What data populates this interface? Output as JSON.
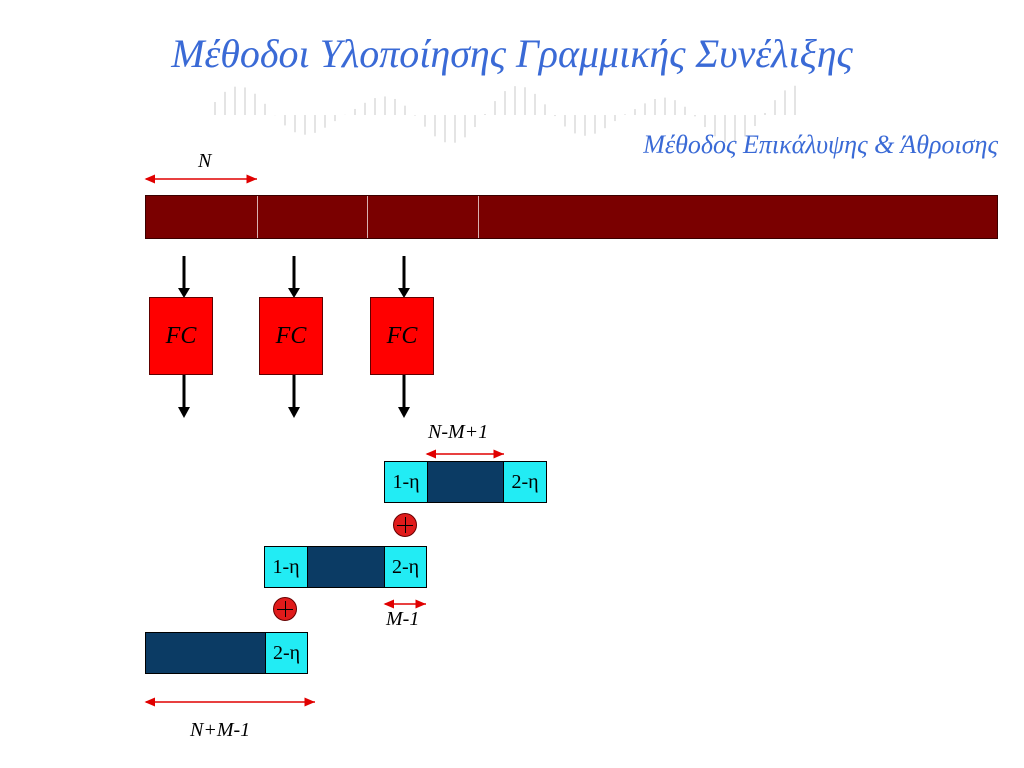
{
  "title": "Μέθοδοι Υλοποίησης Γραμμικής Συνέλιξης",
  "subtitle": "Μέθοδος Επικάλυψης & Άθροισης",
  "labels": {
    "n": "N",
    "n_minus_m_plus_1": "N-M+1",
    "m_minus_1": "M-1",
    "n_plus_m_minus_1": "N+M-1"
  },
  "fc_blocks": [
    "FC",
    "FC",
    "FC"
  ],
  "output_blocks": {
    "row1": {
      "left": "1-η",
      "right": "2-η"
    },
    "row2": {
      "left": "1-η",
      "right": "2-η"
    },
    "row3": {
      "right": "2-η"
    }
  },
  "colors": {
    "title": "#3a6ad6",
    "input_strip": "#7a0000",
    "fc_block": "#ff0000",
    "dark_segment": "#0b3b64",
    "overlap_segment": "#22ecf4",
    "dimension_arrow": "#e00000",
    "adder": "#e01b1b"
  },
  "icons": [
    "down-arrow-icon",
    "adder-icon",
    "dimension-arrow-icon"
  ]
}
